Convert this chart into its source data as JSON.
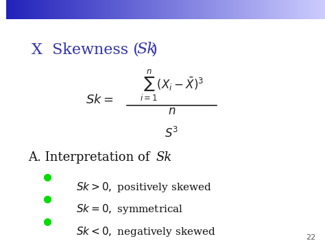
{
  "title": "X  Skewness (",
  "title_italic": "Sk",
  "title_end": ")",
  "title_color": "#3333aa",
  "title_fontsize": 16,
  "bg_color": "#ffffff",
  "border_left_color": "#00ee00",
  "border_top_color_left": "#3333cc",
  "border_top_color_right": "#aaaaee",
  "formula_color": "#000000",
  "interp_title": "A. Interpretation of ",
  "interp_italic": "Sk",
  "bullet_color": "#00dd00",
  "bullet_items": [
    [
      " > 0, positively skewed",
      "Sk"
    ],
    [
      " = 0, symmetrical",
      "Sk"
    ],
    [
      " < 0, negatively skewed",
      "Sk"
    ]
  ],
  "page_num": "22",
  "bullet_fontsize": 11,
  "interp_fontsize": 13
}
